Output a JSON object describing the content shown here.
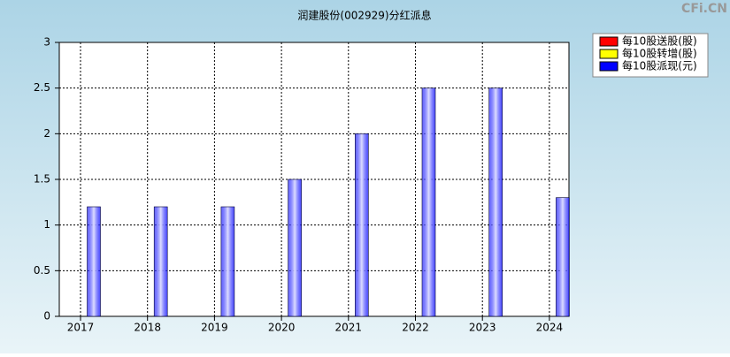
{
  "chart_data": {
    "type": "bar",
    "title": "润建股份(002929)分红派息",
    "watermark": "CFi.CN",
    "categories": [
      "2017",
      "2018",
      "2019",
      "2020",
      "2021",
      "2022",
      "2023",
      "2024"
    ],
    "series": [
      {
        "name": "每10股送股(股)",
        "color": "#ff0000",
        "values": [
          null,
          null,
          null,
          null,
          null,
          null,
          null,
          null
        ]
      },
      {
        "name": "每10股转增(股)",
        "color": "#ffff00",
        "values": [
          null,
          null,
          null,
          null,
          null,
          null,
          null,
          null
        ]
      },
      {
        "name": "每10股派现(元)",
        "color": "#0000ff",
        "values": [
          1.2,
          1.2,
          1.2,
          1.5,
          2,
          2.5,
          2.5,
          1.3
        ]
      }
    ],
    "ylim": [
      0,
      3
    ],
    "yticks": [
      0,
      0.5,
      1,
      1.5,
      2,
      2.5,
      3
    ],
    "grid": true,
    "legend": "right"
  }
}
